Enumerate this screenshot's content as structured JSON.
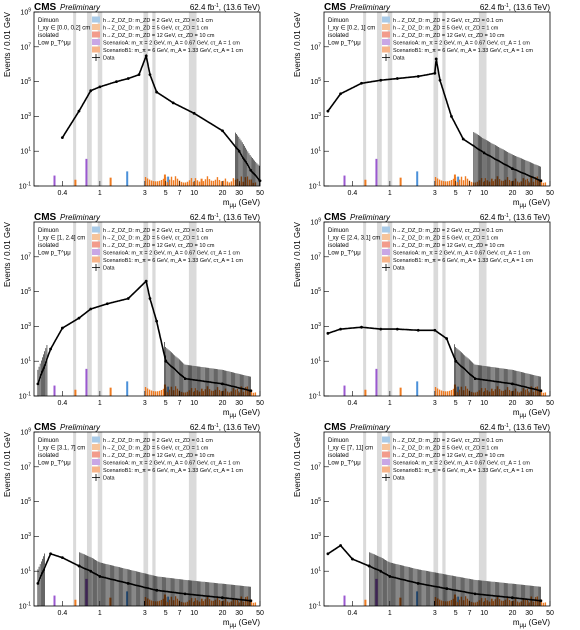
{
  "common": {
    "experiment": "CMS",
    "status": "Preliminary",
    "lumi": "62.4 fb",
    "lumi_exp": "-1",
    "energy": "(13.6 TeV)",
    "xlabel": "m",
    "xlabel_sub": "μμ",
    "xlabel_unit": "(GeV)",
    "ylabel": "Events / 0.01 GeV",
    "x_ticks": [
      "0.4",
      "1",
      "3",
      "5",
      "7",
      "10",
      "20",
      "30",
      "50"
    ],
    "x_scale": "log",
    "y_scale": "log",
    "legend": [
      {
        "label": "h→Z_DZ_D: m_ZD = 2 GeV, cτ_ZD = 0.1 cm",
        "color": "#a9cbe8",
        "marker": "box"
      },
      {
        "label": "h→Z_DZ_D: m_ZD = 5 GeV, cτ_ZD = 1 cm",
        "color": "#f6c49b",
        "marker": "box"
      },
      {
        "label": "h→Z_DZ_D: m_ZD = 12 GeV, cτ_ZD = 10 cm",
        "color": "#f29b8c",
        "marker": "box"
      },
      {
        "label": "ScenarioA: m_π = 2 GeV, m_A = 0.67 GeV, cτ_A = 1 cm",
        "color": "#c9a7e6",
        "marker": "box"
      },
      {
        "label": "ScenarioB1: m_π = 6 GeV, m_A = 1.33 GeV, cτ_A = 1 cm",
        "color": "#f7b48a",
        "marker": "box"
      },
      {
        "label": "Data",
        "color": "#000000",
        "marker": "cross"
      }
    ],
    "colors": {
      "excluded_band": "#d3d3d3",
      "data": "#000000",
      "signal_blue": "#4a90d9",
      "signal_orange": "#ee7a20",
      "signal_purple": "#9b59d0"
    }
  },
  "chart_data": [
    {
      "type": "histogram",
      "selection": [
        "Dimuon",
        "l_xy ∈ [0.0, 0.2] cm",
        "isolated",
        "Low p_T^μμ"
      ],
      "ylim": [
        0.1,
        1000000000
      ],
      "y_tick_exps": [
        -1,
        1,
        3,
        5,
        7,
        9
      ],
      "data": [
        [
          0.4,
          60
        ],
        [
          0.6,
          2000
        ],
        [
          0.8,
          30000
        ],
        [
          1.0,
          50000
        ],
        [
          1.5,
          100000
        ],
        [
          2.0,
          150000
        ],
        [
          2.6,
          250000
        ],
        [
          3.1,
          3000000
        ],
        [
          3.4,
          250000
        ],
        [
          4.0,
          25000
        ],
        [
          6.0,
          6000
        ],
        [
          10.0,
          1500
        ],
        [
          20.0,
          150
        ],
        [
          30.0,
          10
        ],
        [
          40.0,
          0.8
        ],
        [
          50.0,
          0.2
        ]
      ]
    },
    {
      "type": "histogram",
      "selection": [
        "Dimuon",
        "l_xy ∈ [0.2, 1] cm",
        "isolated",
        "Low p_T^μμ"
      ],
      "ylim": [
        0.1,
        1000000000
      ],
      "y_tick_exps": [
        -1,
        1,
        3,
        5,
        7
      ],
      "data": [
        [
          0.22,
          2000
        ],
        [
          0.3,
          20000
        ],
        [
          0.5,
          80000
        ],
        [
          0.8,
          120000
        ],
        [
          1.2,
          150000
        ],
        [
          2.0,
          200000
        ],
        [
          3.0,
          300000
        ],
        [
          3.1,
          2000000
        ],
        [
          3.4,
          120000
        ],
        [
          4.5,
          1000
        ],
        [
          6.0,
          50
        ],
        [
          10.0,
          8
        ],
        [
          20.0,
          1
        ],
        [
          40.0,
          0.2
        ]
      ]
    },
    {
      "type": "histogram",
      "selection": [
        "Dimuon",
        "l_xy ∈ [1, 2.4] cm",
        "isolated",
        "Low p_T^μμ"
      ],
      "ylim": [
        0.1,
        1000000000
      ],
      "y_tick_exps": [
        -1,
        1,
        3,
        5,
        7
      ],
      "data": [
        [
          0.22,
          0.5
        ],
        [
          0.3,
          50
        ],
        [
          0.4,
          800
        ],
        [
          0.6,
          3000
        ],
        [
          0.8,
          10000
        ],
        [
          1.2,
          20000
        ],
        [
          2.0,
          40000
        ],
        [
          3.1,
          400000
        ],
        [
          3.4,
          40000
        ],
        [
          4.0,
          2000
        ],
        [
          5.0,
          10
        ],
        [
          8.0,
          1
        ],
        [
          20.0,
          0.5
        ],
        [
          40.0,
          0.2
        ]
      ]
    },
    {
      "type": "histogram",
      "selection": [
        "Dimuon",
        "l_xy ∈ [2.4, 3.1] cm",
        "isolated",
        "Low p_T^μμ"
      ],
      "ylim": [
        0.1,
        1000000000
      ],
      "y_tick_exps": [
        -1,
        1,
        3,
        5,
        7,
        9
      ],
      "data": [
        [
          0.22,
          400
        ],
        [
          0.3,
          700
        ],
        [
          0.5,
          900
        ],
        [
          0.8,
          700
        ],
        [
          1.2,
          700
        ],
        [
          2.0,
          600
        ],
        [
          3.0,
          600
        ],
        [
          4.0,
          200
        ],
        [
          5.0,
          10
        ],
        [
          8.0,
          1
        ],
        [
          20.0,
          0.5
        ],
        [
          40.0,
          0.2
        ]
      ]
    },
    {
      "type": "histogram",
      "selection": [
        "Dimuon",
        "l_xy ∈ [3.1, 7] cm",
        "isolated",
        "Low p_T^μμ"
      ],
      "ylim": [
        0.1,
        1000000000
      ],
      "y_tick_exps": [
        -1,
        1,
        3,
        5,
        7,
        9
      ],
      "data": [
        [
          0.22,
          2
        ],
        [
          0.3,
          100
        ],
        [
          0.4,
          60
        ],
        [
          0.6,
          20
        ],
        [
          0.8,
          10
        ],
        [
          1.0,
          5
        ],
        [
          2.0,
          2
        ],
        [
          4.0,
          0.8
        ],
        [
          8.0,
          0.5
        ],
        [
          20.0,
          0.3
        ],
        [
          40.0,
          0.2
        ]
      ]
    },
    {
      "type": "histogram",
      "selection": [
        "Dimuon",
        "l_xy ∈ [7, 11] cm",
        "isolated",
        "Low p_T^μμ"
      ],
      "ylim": [
        0.1,
        1000000000
      ],
      "y_tick_exps": [
        -1,
        1,
        3,
        5,
        7
      ],
      "data": [
        [
          0.22,
          100
        ],
        [
          0.3,
          300
        ],
        [
          0.4,
          50
        ],
        [
          0.6,
          20
        ],
        [
          0.8,
          10
        ],
        [
          1.0,
          5
        ],
        [
          2.0,
          2
        ],
        [
          4.0,
          1
        ],
        [
          8.0,
          0.5
        ],
        [
          20.0,
          0.3
        ],
        [
          40.0,
          0.2
        ]
      ]
    }
  ]
}
